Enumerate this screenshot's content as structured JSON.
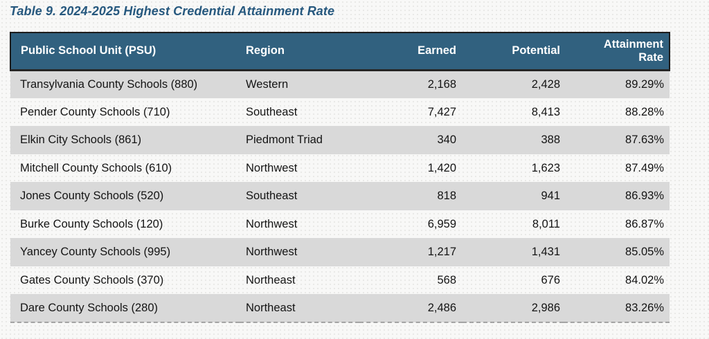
{
  "title": "Table 9. 2024-2025 Highest Credential Attainment Rate",
  "colors": {
    "title_text": "#26587E",
    "header_background": "#31617F",
    "header_text": "#FFFFFF",
    "striped_row_background": "#D9D9D9",
    "body_text": "#141414",
    "header_border": "#1C1C1C"
  },
  "table": {
    "columns": [
      {
        "label": "Public School Unit (PSU)",
        "align": "left"
      },
      {
        "label": "Region",
        "align": "left"
      },
      {
        "label": "Earned",
        "align": "right"
      },
      {
        "label": "Potential",
        "align": "right"
      },
      {
        "label": "Attainment Rate",
        "align": "right"
      }
    ],
    "rows": [
      [
        "Transylvania County Schools (880)",
        "Western",
        "2,168",
        "2,428",
        "89.29%"
      ],
      [
        "Pender County Schools (710)",
        "Southeast",
        "7,427",
        "8,413",
        "88.28%"
      ],
      [
        "Elkin City Schools (861)",
        "Piedmont Triad",
        "340",
        "388",
        "87.63%"
      ],
      [
        "Mitchell County Schools (610)",
        "Northwest",
        "1,420",
        "1,623",
        "87.49%"
      ],
      [
        "Jones County Schools (520)",
        "Southeast",
        "818",
        "941",
        "86.93%"
      ],
      [
        "Burke County Schools (120)",
        "Northwest",
        "6,959",
        "8,011",
        "86.87%"
      ],
      [
        "Yancey County Schools (995)",
        "Northwest",
        "1,217",
        "1,431",
        "85.05%"
      ],
      [
        "Gates County Schools (370)",
        "Northeast",
        "568",
        "676",
        "84.02%"
      ],
      [
        "Dare County Schools (280)",
        "Northeast",
        "2,486",
        "2,986",
        "83.26%"
      ]
    ]
  }
}
